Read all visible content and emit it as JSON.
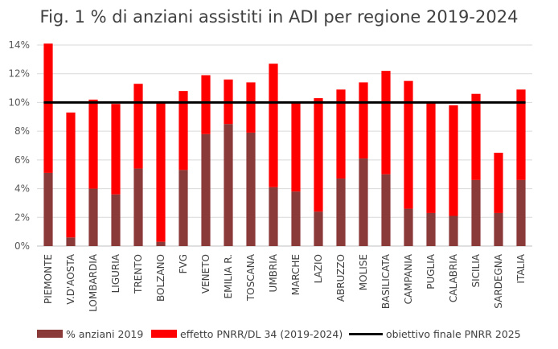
{
  "chart_data": {
    "type": "bar",
    "stacked": true,
    "title": "Fig. 1 % di anziani assistiti in ADI per regione 2019-2024",
    "xlabel": "",
    "ylabel": "",
    "ylim": [
      0,
      14
    ],
    "yticks": [
      "0%",
      "2%",
      "4%",
      "6%",
      "8%",
      "10%",
      "12%",
      "14%"
    ],
    "grid": true,
    "legend_position": "bottom",
    "categories": [
      "PIEMONTE",
      "V.D'AOSTA",
      "LOMBARDIA",
      "LIGURIA",
      "TRENTO",
      "BOLZANO",
      "FVG",
      "VENETO",
      "EMILIA R.",
      "TOSCANA",
      "UMBRIA",
      "MARCHE",
      "LAZIO",
      "ABRUZZO",
      "MOLISE",
      "BASILICATA",
      "CAMPANIA",
      "PUGLIA",
      "CALABRIA",
      "SICILIA",
      "SARDEGNA",
      "ITALIA"
    ],
    "series": [
      {
        "name": "% anziani 2019",
        "color": "#8B3A3A",
        "values": [
          5.1,
          0.6,
          4.0,
          3.6,
          5.4,
          0.3,
          5.3,
          7.8,
          8.5,
          7.9,
          4.1,
          3.8,
          2.4,
          4.7,
          6.1,
          5.0,
          2.6,
          2.3,
          2.1,
          4.6,
          2.3,
          4.6
        ]
      },
      {
        "name": "effetto PNRR/DL 34 (2019-2024)",
        "color": "#FF0000",
        "values": [
          9.0,
          8.7,
          6.2,
          6.3,
          5.9,
          9.7,
          5.5,
          4.1,
          3.1,
          3.5,
          8.6,
          6.2,
          7.9,
          6.2,
          5.3,
          7.2,
          8.9,
          7.7,
          7.7,
          6.0,
          4.2,
          6.3
        ]
      }
    ],
    "reference_line": {
      "name": "obiettivo finale PNRR 2025",
      "value": 10,
      "color": "#000000"
    }
  }
}
